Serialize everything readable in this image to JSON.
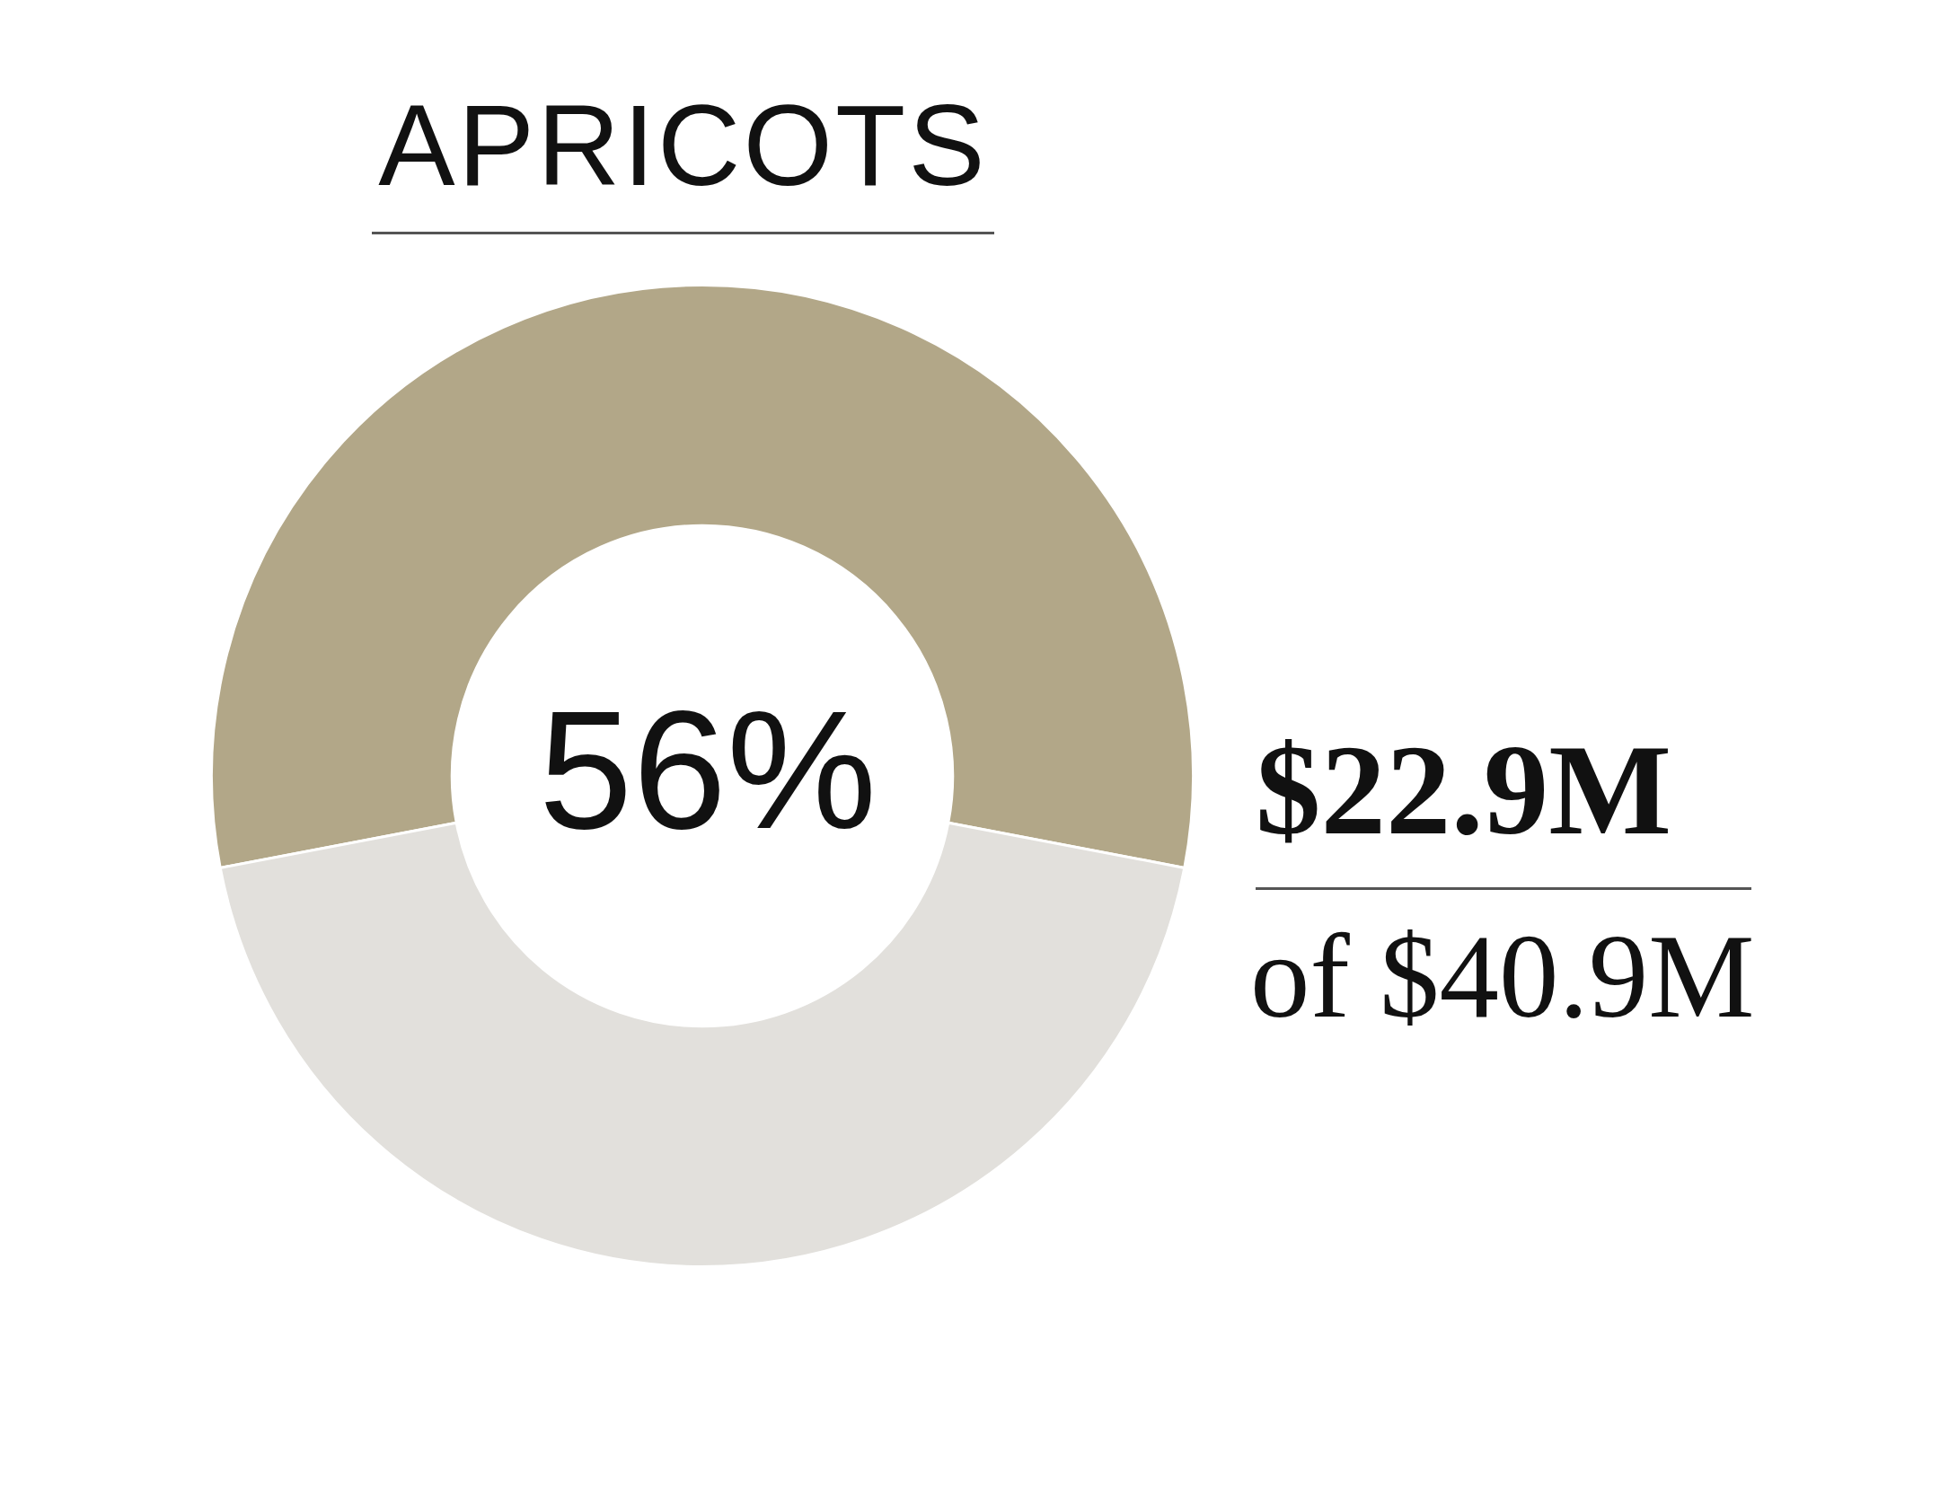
{
  "chart_data": {
    "type": "donut",
    "title": "APRICOTS",
    "categories": [
      null,
      null
    ],
    "values": [
      56,
      44
    ],
    "colors": [
      "#b2a788",
      "#e2e0dc"
    ],
    "value_labels": [
      "56%",
      null
    ],
    "annotations": [
      "$22.9M",
      "of $40.9M"
    ]
  }
}
